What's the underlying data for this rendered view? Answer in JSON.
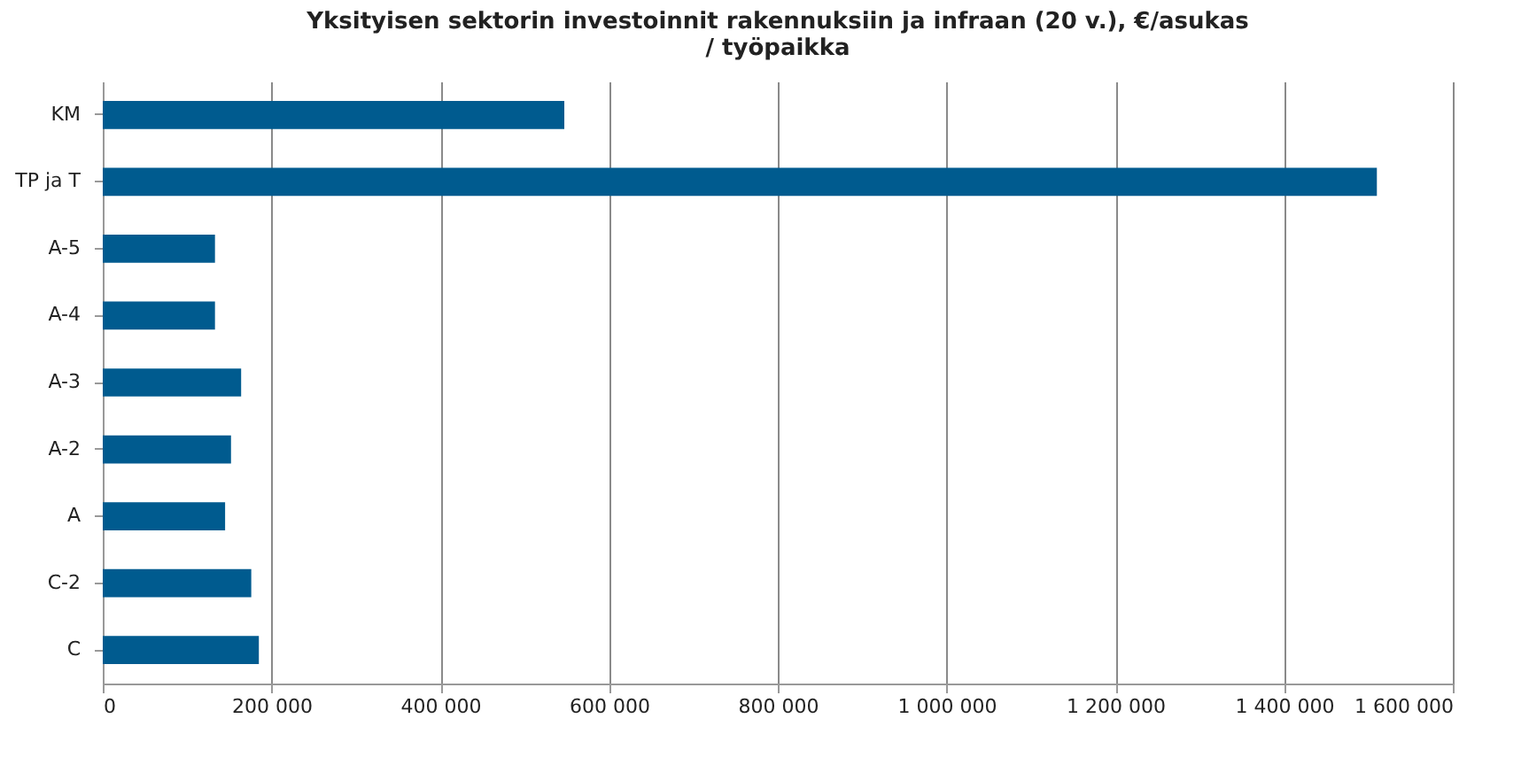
{
  "chart_data": {
    "type": "bar",
    "orientation": "horizontal",
    "title": "Yksityisen sektorin investoinnit rakennuksiin ja infraan (20 v.), €/asukas / työpaikka",
    "categories": [
      "KM",
      "TP ja T",
      "A-5",
      "A-4",
      "A-3",
      "A-2",
      "A",
      "C-2",
      "C"
    ],
    "values": [
      547000,
      1510000,
      133000,
      133000,
      164000,
      152000,
      145000,
      176000,
      185000
    ],
    "color": "#005b8f",
    "xlim": [
      0,
      1600000
    ],
    "xticks": [
      0,
      {
        "value": 200000,
        "label": "200 000"
      },
      {
        "value": 400000,
        "label": "400 000"
      },
      {
        "value": 600000,
        "label": "600 000"
      },
      {
        "value": 800000,
        "label": "800 000"
      },
      {
        "value": 1000000,
        "label": "1 000 000"
      },
      {
        "value": 1200000,
        "label": "1 200 000"
      },
      {
        "value": 1400000,
        "label": "1 400 000"
      },
      {
        "value": 1600000,
        "label": "1 600 000"
      }
    ],
    "grid": "x"
  }
}
